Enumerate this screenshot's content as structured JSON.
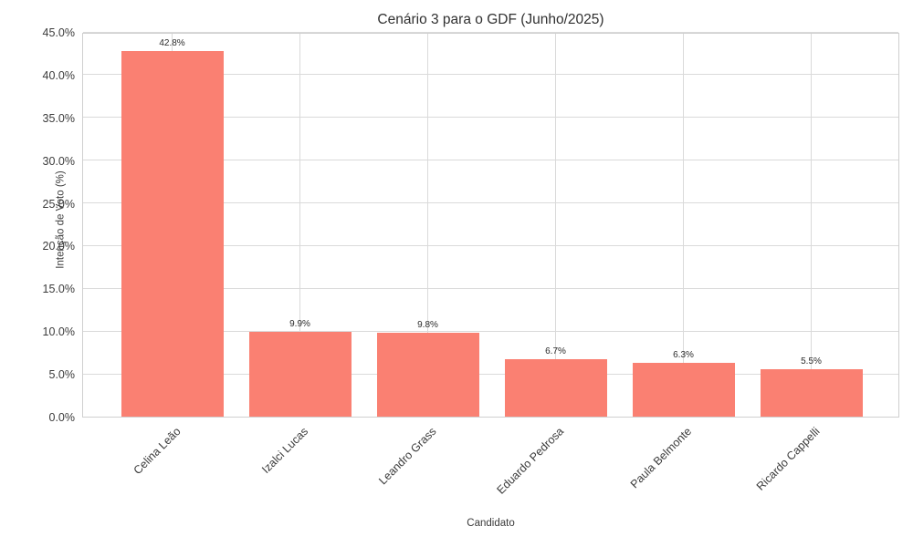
{
  "chart_data": {
    "type": "bar",
    "title": "Cenário 3 para o GDF (Junho/2025)",
    "xlabel": "Candidato",
    "ylabel": "Intenção de Voto (%)",
    "categories": [
      "Celina Leão",
      "Izalci Lucas",
      "Leandro Grass",
      "Eduardo Pedrosa",
      "Paula Belmonte",
      "Ricardo Cappelli"
    ],
    "values": [
      42.8,
      9.9,
      9.8,
      6.7,
      6.3,
      5.5
    ],
    "value_labels": [
      "42.8%",
      "9.9%",
      "9.8%",
      "6.7%",
      "6.3%",
      "5.5%"
    ],
    "ylim": [
      0,
      45
    ],
    "ytick_step": 5,
    "ytick_labels": [
      "0.0%",
      "5.0%",
      "10.0%",
      "15.0%",
      "20.0%",
      "25.0%",
      "30.0%",
      "35.0%",
      "40.0%",
      "45.0%"
    ],
    "grid": true,
    "legend": "none",
    "bar_color": "#fa8072",
    "grid_color": "#dadada",
    "spine_color": "#cfcfcf",
    "text_color": "#3b3b3b"
  }
}
